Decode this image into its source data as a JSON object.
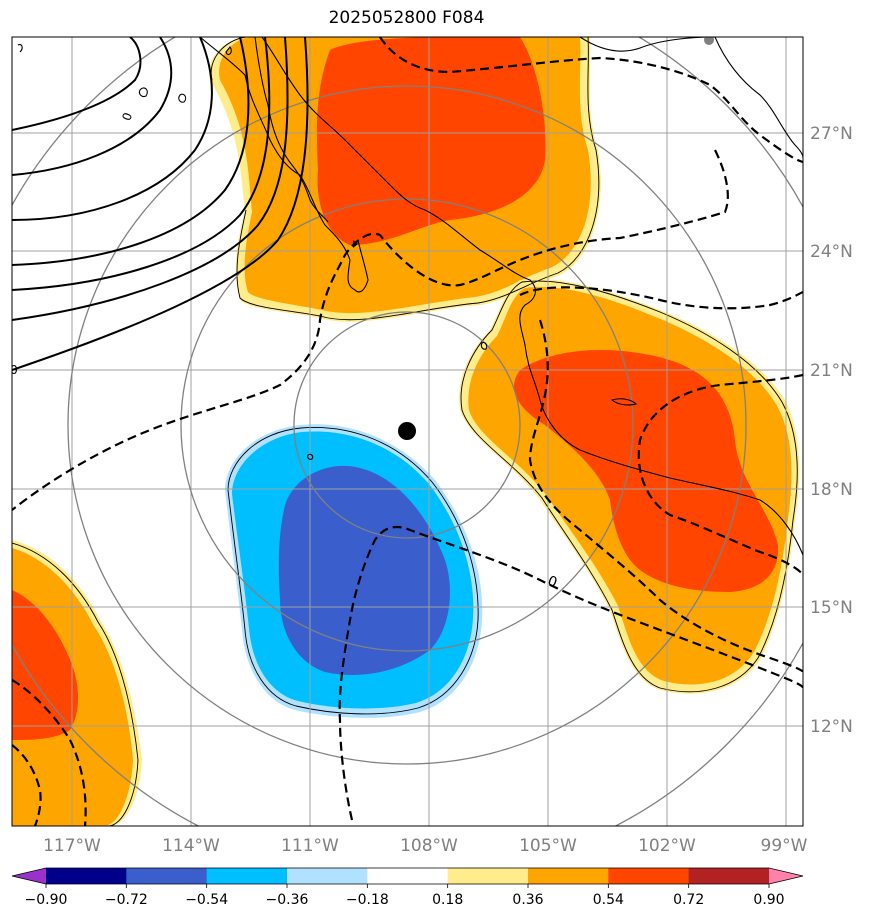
{
  "title": "2025052800 F084",
  "colors": {
    "dark_purple": "#9932cc",
    "navy": "#00008b",
    "royal_blue": "#3a5fcd",
    "deep_sky": "#00bfff",
    "light_sky": "#b0e2ff",
    "white": "#ffffff",
    "light_yellow": "#ffec8b",
    "orange": "#ffa500",
    "orange_red": "#ff4500",
    "firebrick": "#b22222",
    "pink": "#ff82ab",
    "gridline": "#a0a0a0",
    "range_ring": "#808080"
  },
  "axes": {
    "lat_labels": [
      "27°N",
      "24°N",
      "21°N",
      "18°N",
      "15°N",
      "12°N"
    ],
    "lon_labels": [
      "117°W",
      "114°W",
      "111°W",
      "108°W",
      "105°W",
      "102°W",
      "99°W"
    ]
  },
  "contour_labels": [
    "0",
    "0",
    "0"
  ],
  "colorbar": {
    "labels": [
      "−0.90",
      "−0.72",
      "−0.54",
      "−0.36",
      "−0.18",
      "0.18",
      "0.36",
      "0.54",
      "0.72",
      "0.90"
    ],
    "bins": [
      "navy",
      "royal_blue",
      "deep_sky",
      "light_sky",
      "white",
      "light_yellow",
      "orange",
      "orange_red",
      "firebrick"
    ],
    "under": "dark_purple",
    "over": "pink"
  },
  "storm_center": {
    "lat": 19.4,
    "lon": -108.6,
    "symbol": "black-dot"
  }
}
